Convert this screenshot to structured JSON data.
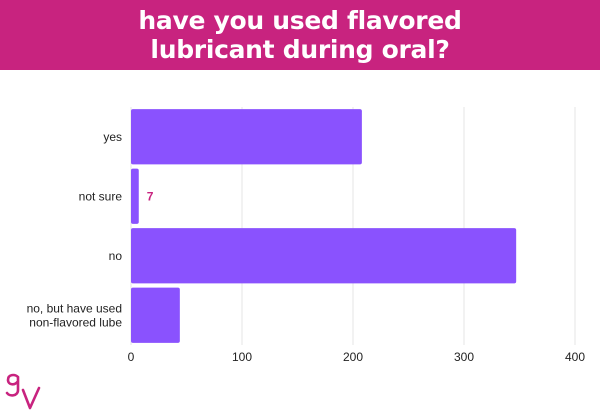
{
  "title": {
    "line1": "have you used flavored",
    "line2": "lubricant during oral?"
  },
  "colors": {
    "banner": "#c8237f",
    "bar": "#8a52fe",
    "data_label": "#c8237f",
    "grid": "#e4e4e4",
    "text": "#222222"
  },
  "logo": {
    "text": "gv",
    "color": "#c8237f"
  },
  "chart_data": {
    "type": "bar",
    "orientation": "horizontal",
    "categories": [
      "yes",
      "not sure",
      "no",
      "no, but have used non-flavored lube"
    ],
    "category_lines": [
      [
        "yes"
      ],
      [
        "not sure"
      ],
      [
        "no"
      ],
      [
        "no, but have used",
        "non-flavored lube"
      ]
    ],
    "values": [
      208,
      7,
      347,
      44
    ],
    "data_labels": [
      null,
      "7",
      null,
      null
    ],
    "xlim": [
      0,
      400
    ],
    "xticks": [
      0,
      100,
      200,
      300,
      400
    ],
    "grid": true,
    "legend": "none"
  }
}
